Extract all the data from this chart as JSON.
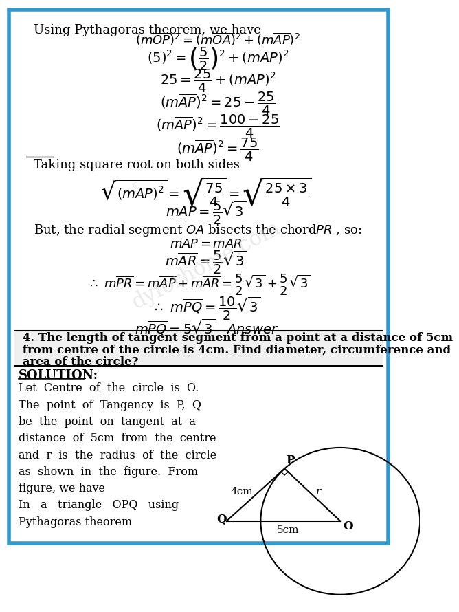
{
  "bg_color": "#ffffff",
  "border_color": "#3399cc",
  "border_width": 4,
  "watermark_text": "dyforhome.com",
  "watermark_color": "#c8c8c8",
  "top_text": "Using Pythagoras theorem, we have",
  "taking_sqrt": "Taking square root on both sides",
  "bisects_text": "But, the radial segment $\\overline{OA}$ bisects the chord$\\overline{PR}$ , so:",
  "problem4_text": [
    " 4. The length of tangent segment from a point at a distance of 5cm",
    " from centre of the circle is 4cm. Find diameter, circumference and",
    " area of the circle?"
  ],
  "solution_label": "SOLUTION:",
  "solution_text": [
    "Let  Centre  of  the  circle  is  O.",
    "The  point  of  Tangency  is  P,  Q",
    "be  the  point  on  tangent  at  a",
    "distance  of  5cm  from  the  centre",
    "and  r  is  the  radius  of  the  circle",
    "as  shown  in  the  figure.  From",
    "figure, we have",
    "In   a   triangle   OPQ   using",
    "Pythagoras theorem"
  ]
}
